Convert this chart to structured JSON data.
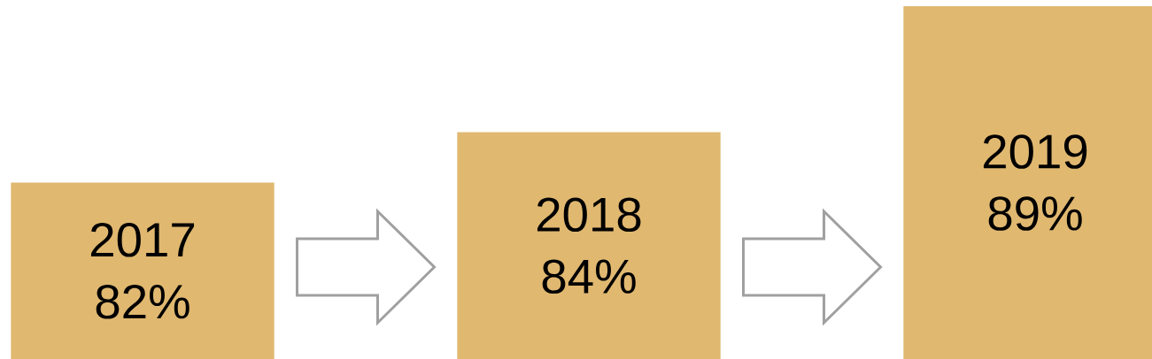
{
  "chart_data": {
    "type": "bar",
    "categories": [
      "2017",
      "2018",
      "2019"
    ],
    "values": [
      82,
      84,
      89
    ],
    "value_labels": [
      "82%",
      "84%",
      "89%"
    ],
    "color": "#e0b870",
    "ylim": [
      75,
      89
    ]
  }
}
